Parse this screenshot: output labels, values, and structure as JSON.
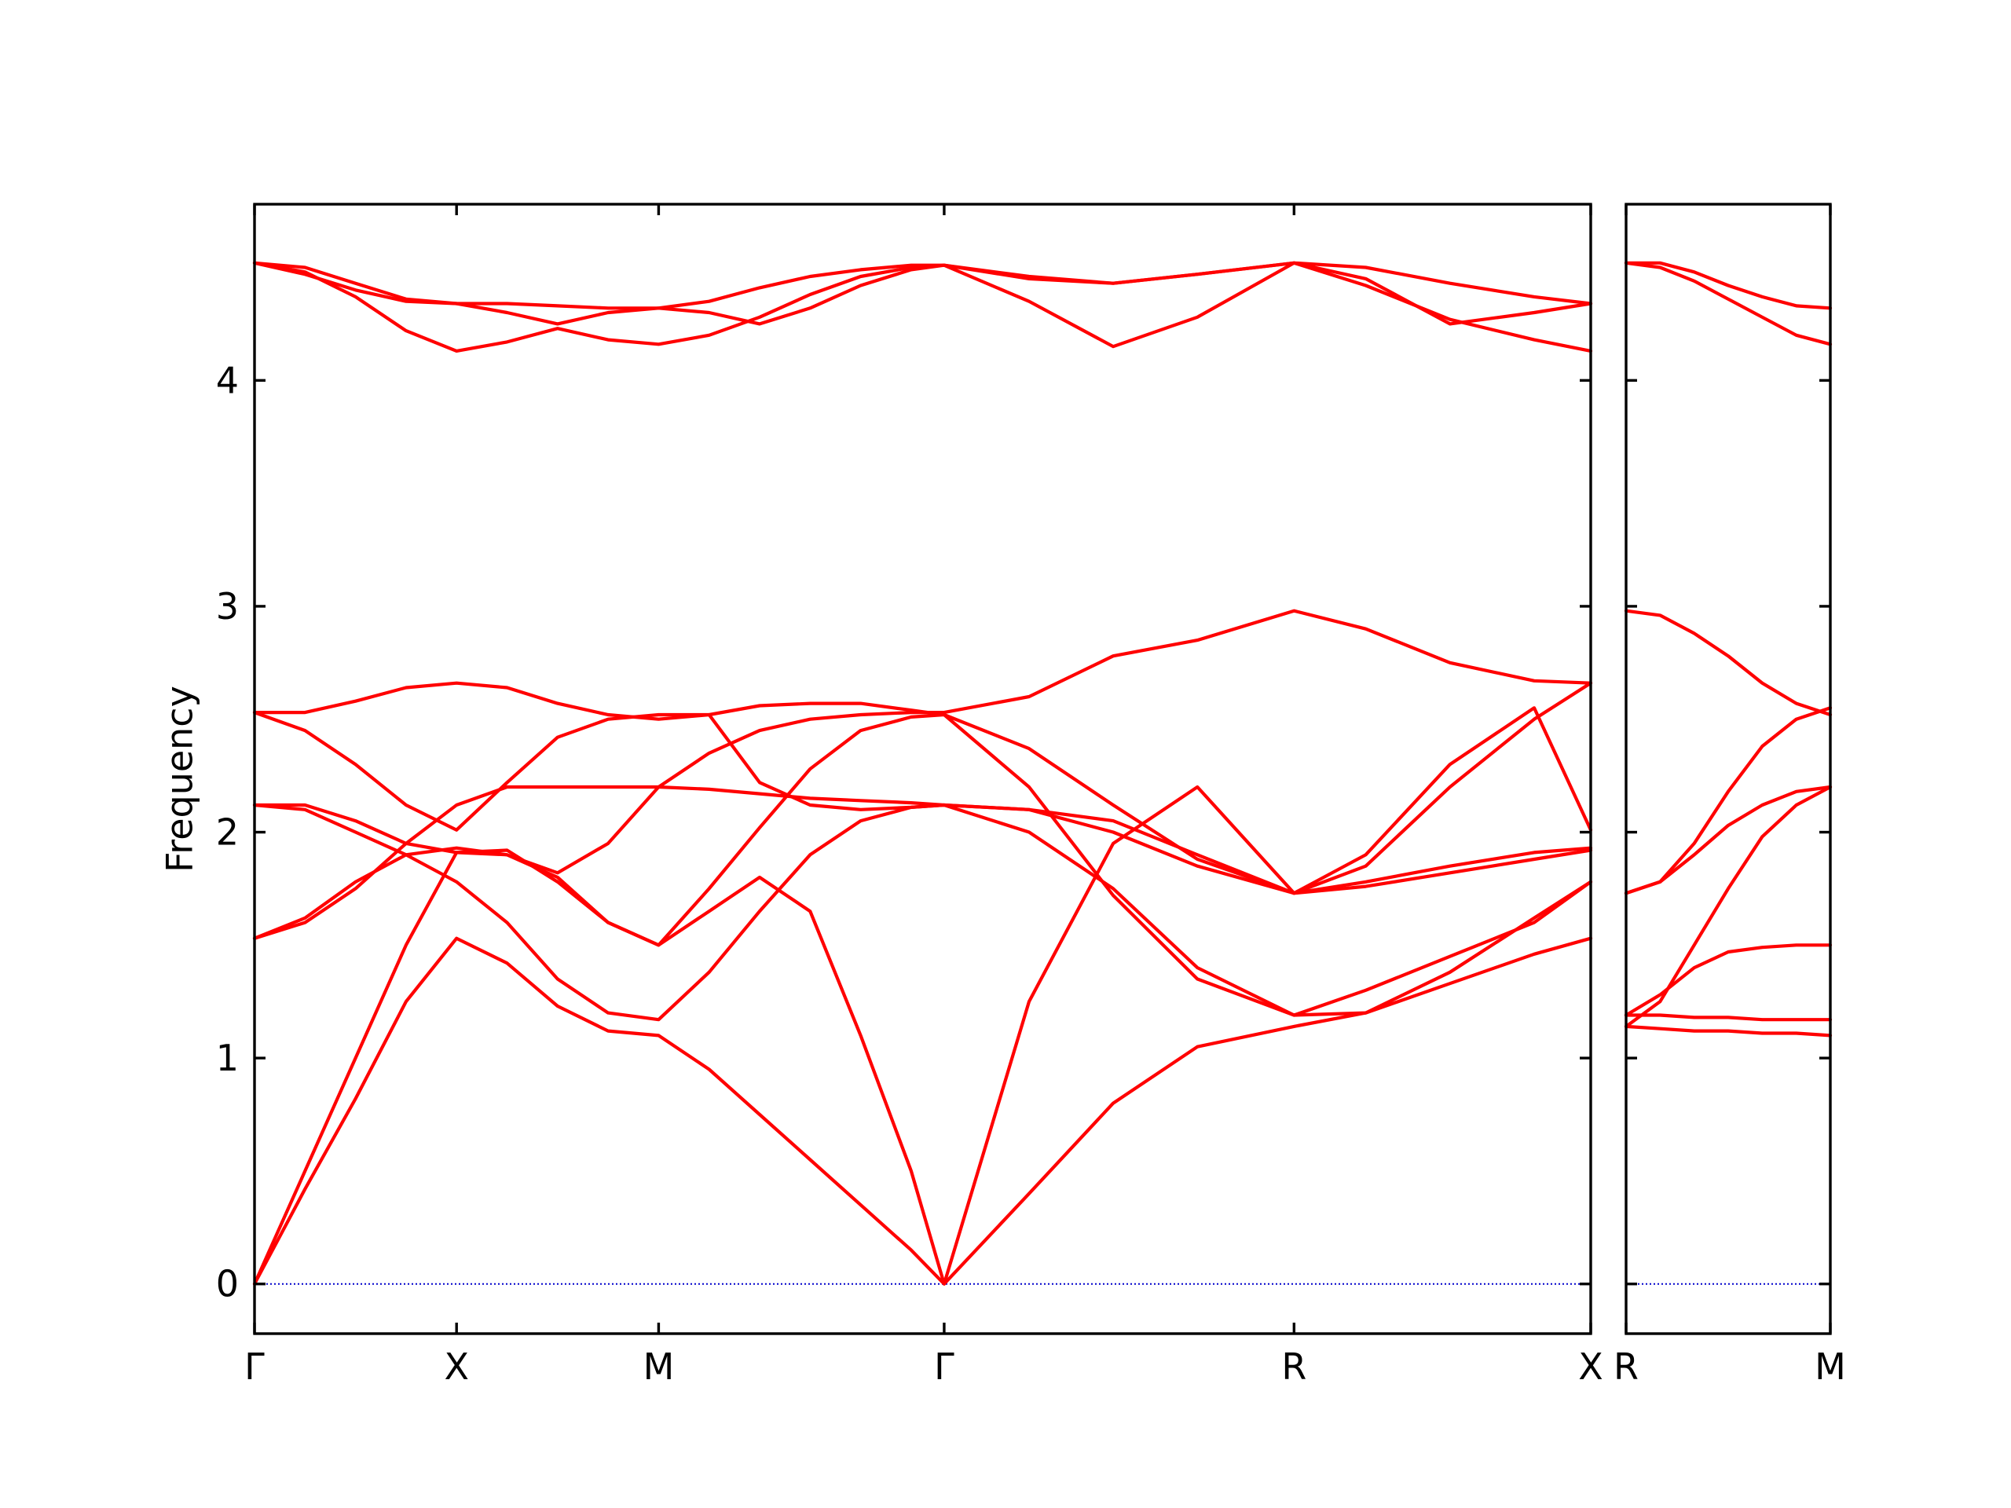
{
  "chart_data": {
    "type": "line",
    "ylabel": "Frequency",
    "ylim": [
      -0.22,
      4.78
    ],
    "yticks": [
      0,
      1,
      2,
      3,
      4
    ],
    "colors": {
      "band": "#ff0000",
      "zero_line": "#0000cc",
      "frame": "#000000"
    },
    "panels": [
      {
        "xlim": [
          0,
          3.968
        ],
        "xticks": [
          {
            "pos": 0.0,
            "label": "Γ"
          },
          {
            "pos": 0.6,
            "label": "X"
          },
          {
            "pos": 1.2,
            "label": "M"
          },
          {
            "pos": 2.048,
            "label": "Γ"
          },
          {
            "pos": 3.087,
            "label": "R"
          },
          {
            "pos": 3.968,
            "label": "X"
          }
        ],
        "series": [
          {
            "x": [
              0,
              0.15,
              0.3,
              0.45,
              0.6,
              0.75,
              0.9,
              1.05,
              1.2,
              1.35,
              1.5,
              1.65,
              1.8,
              1.95,
              2.048,
              2.3,
              2.55,
              2.8,
              3.087,
              3.3,
              3.55,
              3.8,
              3.968
            ],
            "y": [
              0,
              0.42,
              0.82,
              1.25,
              1.53,
              1.42,
              1.23,
              1.12,
              1.1,
              0.95,
              0.75,
              0.55,
              0.35,
              0.15,
              0,
              0.4,
              0.8,
              1.05,
              1.14,
              1.2,
              1.33,
              1.46,
              1.53
            ]
          },
          {
            "x": [
              0,
              0.15,
              0.3,
              0.45,
              0.6,
              0.75,
              0.9,
              1.05,
              1.2,
              1.35,
              1.5,
              1.65,
              1.8,
              1.95,
              2.048,
              2.3,
              2.55,
              2.8,
              3.087,
              3.3,
              3.55,
              3.8,
              3.968
            ],
            "y": [
              0,
              0.5,
              1.0,
              1.5,
              1.91,
              1.92,
              1.78,
              1.6,
              1.5,
              1.65,
              1.8,
              1.65,
              1.1,
              0.5,
              0,
              1.25,
              1.95,
              2.2,
              1.73,
              1.78,
              1.85,
              1.91,
              1.93
            ]
          },
          {
            "x": [
              0,
              0.15,
              0.3,
              0.45,
              0.6,
              0.75,
              0.9,
              1.05,
              1.2,
              1.35,
              1.5,
              1.65,
              1.8,
              1.95,
              2.048,
              2.3,
              2.55,
              2.8,
              3.087,
              3.3,
              3.55,
              3.8,
              3.968
            ],
            "y": [
              2.12,
              2.1,
              2.0,
              1.9,
              1.78,
              1.6,
              1.35,
              1.2,
              1.17,
              1.38,
              1.65,
              1.9,
              2.05,
              2.11,
              2.12,
              2.0,
              1.75,
              1.4,
              1.19,
              1.2,
              1.38,
              1.62,
              1.78
            ]
          },
          {
            "x": [
              0,
              0.15,
              0.3,
              0.45,
              0.6,
              0.75,
              0.9,
              1.05,
              1.2,
              1.35,
              1.5,
              1.65,
              1.8,
              1.95,
              2.048,
              2.3,
              2.55,
              2.8,
              3.087,
              3.3,
              3.55,
              3.8,
              3.968
            ],
            "y": [
              2.12,
              2.12,
              2.05,
              1.95,
              1.91,
              1.9,
              1.8,
              1.6,
              1.5,
              1.75,
              2.02,
              2.28,
              2.45,
              2.51,
              2.52,
              2.2,
              1.72,
              1.35,
              1.19,
              1.3,
              1.45,
              1.6,
              1.78
            ]
          },
          {
            "x": [
              0,
              0.15,
              0.3,
              0.45,
              0.6,
              0.75,
              0.9,
              1.05,
              1.2,
              1.35,
              1.5,
              1.65,
              1.8,
              1.95,
              2.048,
              2.3,
              2.55,
              2.8,
              3.087,
              3.3,
              3.55,
              3.8,
              3.968
            ],
            "y": [
              2.53,
              2.45,
              2.3,
              2.12,
              2.01,
              2.22,
              2.42,
              2.5,
              2.52,
              2.52,
              2.22,
              2.12,
              2.1,
              2.11,
              2.12,
              2.1,
              2.0,
              1.85,
              1.73,
              1.9,
              2.3,
              2.55,
              2.01
            ]
          },
          {
            "x": [
              0,
              0.15,
              0.3,
              0.45,
              0.6,
              0.75,
              0.9,
              1.05,
              1.2,
              1.35,
              1.5,
              1.65,
              1.8,
              1.95,
              2.048,
              2.3,
              2.55,
              2.8,
              3.087,
              3.3,
              3.55,
              3.8,
              3.968
            ],
            "y": [
              2.53,
              2.53,
              2.58,
              2.64,
              2.66,
              2.64,
              2.57,
              2.52,
              2.5,
              2.52,
              2.56,
              2.57,
              2.57,
              2.54,
              2.52,
              2.37,
              2.12,
              1.88,
              1.73,
              1.76,
              1.82,
              1.88,
              1.92
            ]
          },
          {
            "x": [
              0,
              0.15,
              0.3,
              0.45,
              0.6,
              0.75,
              0.9,
              1.05,
              1.2,
              1.35,
              1.5,
              1.65,
              1.8,
              1.95,
              2.048,
              2.3,
              2.55,
              2.8,
              3.087,
              3.3,
              3.55,
              3.8,
              3.968
            ],
            "y": [
              1.53,
              1.62,
              1.78,
              1.9,
              1.93,
              1.9,
              1.82,
              1.95,
              2.2,
              2.35,
              2.45,
              2.5,
              2.52,
              2.53,
              2.53,
              2.6,
              2.78,
              2.85,
              2.98,
              2.9,
              2.75,
              2.67,
              2.66
            ]
          },
          {
            "x": [
              0,
              0.15,
              0.3,
              0.45,
              0.6,
              0.75,
              0.9,
              1.05,
              1.2,
              1.35,
              1.5,
              1.65,
              1.8,
              1.95,
              2.048,
              2.3,
              2.55,
              2.8,
              3.087,
              3.3,
              3.55,
              3.8,
              3.968
            ],
            "y": [
              1.53,
              1.6,
              1.75,
              1.95,
              2.12,
              2.2,
              2.2,
              2.2,
              2.2,
              2.19,
              2.17,
              2.15,
              2.14,
              2.13,
              2.12,
              2.1,
              2.05,
              1.9,
              1.73,
              1.85,
              2.2,
              2.5,
              2.66
            ]
          },
          {
            "x": [
              0,
              0.15,
              0.3,
              0.45,
              0.6,
              0.75,
              0.9,
              1.05,
              1.2,
              1.35,
              1.5,
              1.65,
              1.8,
              1.95,
              2.048,
              2.3,
              2.55,
              2.8,
              3.087,
              3.3,
              3.55,
              3.8,
              3.968
            ],
            "y": [
              4.52,
              4.48,
              4.37,
              4.22,
              4.13,
              4.17,
              4.23,
              4.18,
              4.16,
              4.2,
              4.28,
              4.38,
              4.46,
              4.5,
              4.51,
              4.35,
              4.15,
              4.28,
              4.52,
              4.42,
              4.27,
              4.18,
              4.13
            ]
          },
          {
            "x": [
              0,
              0.15,
              0.3,
              0.45,
              0.6,
              0.75,
              0.9,
              1.05,
              1.2,
              1.35,
              1.5,
              1.65,
              1.8,
              1.95,
              2.048,
              2.3,
              2.55,
              2.8,
              3.087,
              3.3,
              3.55,
              3.8,
              3.968
            ],
            "y": [
              4.52,
              4.47,
              4.4,
              4.35,
              4.34,
              4.3,
              4.25,
              4.3,
              4.32,
              4.3,
              4.25,
              4.32,
              4.42,
              4.49,
              4.51,
              4.45,
              4.43,
              4.47,
              4.52,
              4.45,
              4.25,
              4.3,
              4.34
            ]
          },
          {
            "x": [
              0,
              0.15,
              0.3,
              0.45,
              0.6,
              0.75,
              0.9,
              1.05,
              1.2,
              1.35,
              1.5,
              1.65,
              1.8,
              1.95,
              2.048,
              2.3,
              2.55,
              2.8,
              3.087,
              3.3,
              3.55,
              3.8,
              3.968
            ],
            "y": [
              4.52,
              4.5,
              4.43,
              4.36,
              4.34,
              4.34,
              4.33,
              4.32,
              4.32,
              4.35,
              4.41,
              4.46,
              4.49,
              4.51,
              4.51,
              4.46,
              4.43,
              4.47,
              4.52,
              4.5,
              4.43,
              4.37,
              4.34
            ]
          }
        ]
      },
      {
        "xlim": [
          0,
          0.6
        ],
        "xticks": [
          {
            "pos": 0.0,
            "label": "R"
          },
          {
            "pos": 0.6,
            "label": "M"
          }
        ],
        "series": [
          {
            "x": [
              0,
              0.1,
              0.2,
              0.3,
              0.4,
              0.5,
              0.6
            ],
            "y": [
              1.14,
              1.13,
              1.12,
              1.12,
              1.11,
              1.11,
              1.1
            ]
          },
          {
            "x": [
              0,
              0.1,
              0.2,
              0.3,
              0.4,
              0.5,
              0.6
            ],
            "y": [
              1.19,
              1.19,
              1.18,
              1.18,
              1.17,
              1.17,
              1.17
            ]
          },
          {
            "x": [
              0,
              0.1,
              0.2,
              0.3,
              0.4,
              0.5,
              0.6
            ],
            "y": [
              1.19,
              1.28,
              1.4,
              1.47,
              1.49,
              1.5,
              1.5
            ]
          },
          {
            "x": [
              0,
              0.1,
              0.2,
              0.3,
              0.4,
              0.5,
              0.6
            ],
            "y": [
              1.14,
              1.25,
              1.5,
              1.75,
              1.98,
              2.12,
              2.2
            ]
          },
          {
            "x": [
              0,
              0.1,
              0.2,
              0.3,
              0.4,
              0.5,
              0.6
            ],
            "y": [
              1.73,
              1.78,
              1.9,
              2.03,
              2.12,
              2.18,
              2.2
            ]
          },
          {
            "x": [
              0,
              0.1,
              0.2,
              0.3,
              0.4,
              0.5,
              0.6
            ],
            "y": [
              1.73,
              1.78,
              1.95,
              2.18,
              2.38,
              2.5,
              2.55
            ]
          },
          {
            "x": [
              0,
              0.1,
              0.2,
              0.3,
              0.4,
              0.5,
              0.6
            ],
            "y": [
              2.98,
              2.96,
              2.88,
              2.78,
              2.66,
              2.57,
              2.52
            ]
          },
          {
            "x": [
              0,
              0.1,
              0.2,
              0.3,
              0.4,
              0.5,
              0.6
            ],
            "y": [
              4.52,
              4.5,
              4.44,
              4.36,
              4.28,
              4.2,
              4.16
            ]
          },
          {
            "x": [
              0,
              0.1,
              0.2,
              0.3,
              0.4,
              0.5,
              0.6
            ],
            "y": [
              4.52,
              4.52,
              4.48,
              4.42,
              4.37,
              4.33,
              4.32
            ]
          }
        ]
      }
    ]
  }
}
